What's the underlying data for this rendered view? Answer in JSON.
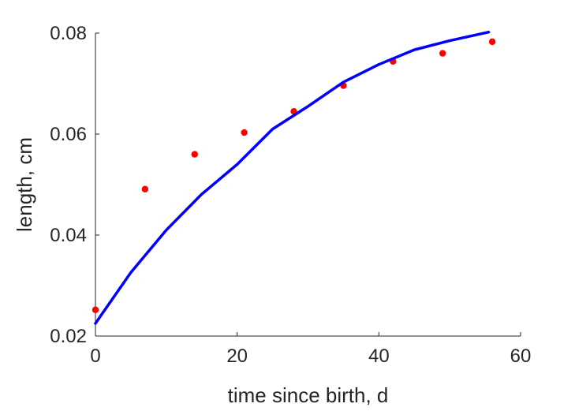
{
  "chart_data": {
    "type": "scatter",
    "title": "",
    "xlabel": "time since birth, d",
    "ylabel": "length, cm",
    "xlim": [
      0,
      60
    ],
    "ylim": [
      0.02,
      0.08
    ],
    "xticks": [
      0,
      20,
      40,
      60
    ],
    "xtick_labels": [
      "0",
      "20",
      "40",
      "60"
    ],
    "yticks": [
      0.02,
      0.04,
      0.06,
      0.08
    ],
    "ytick_labels": [
      "0.02",
      "0.04",
      "0.06",
      "0.08"
    ],
    "grid": false,
    "series": [
      {
        "kind": "scatter",
        "color": "#ff0000",
        "x": [
          0,
          7,
          14,
          21,
          28,
          35,
          42,
          49,
          56
        ],
        "y": [
          0.0252,
          0.0491,
          0.056,
          0.0603,
          0.0645,
          0.0696,
          0.0744,
          0.076,
          0.0783
        ]
      },
      {
        "kind": "line",
        "color": "#0000ff",
        "x": [
          0,
          5,
          10,
          15,
          20,
          25,
          30,
          35,
          40,
          45,
          50,
          55.5
        ],
        "y": [
          0.0225,
          0.0326,
          0.041,
          0.0481,
          0.054,
          0.061,
          0.0655,
          0.0703,
          0.0738,
          0.0767,
          0.0785,
          0.0802
        ]
      }
    ]
  }
}
